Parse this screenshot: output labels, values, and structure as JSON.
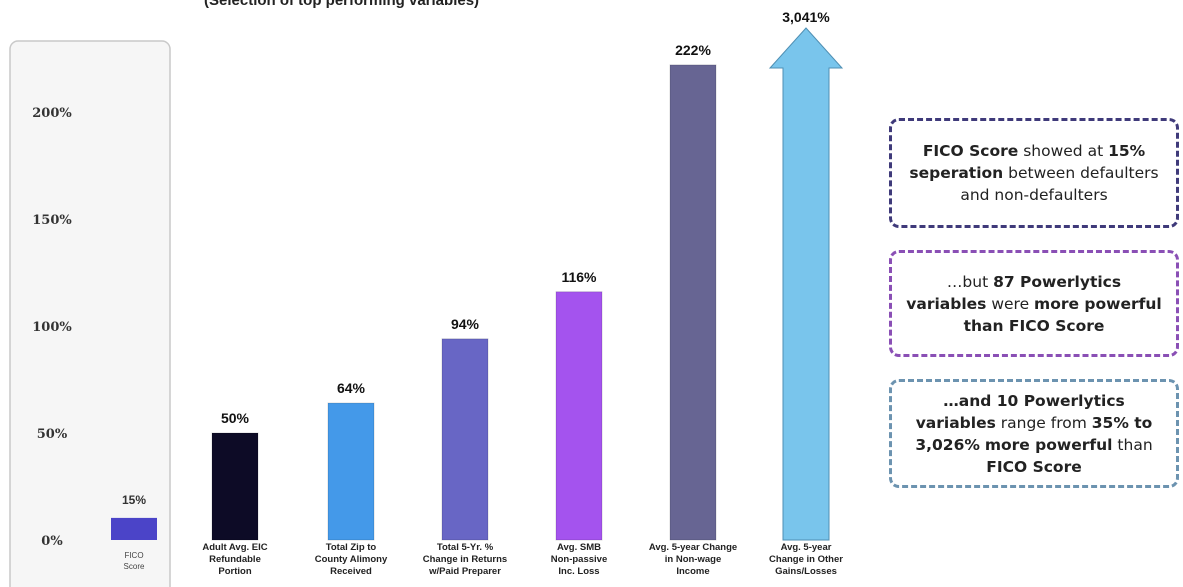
{
  "subtitle": "(Selection of top performing variables)",
  "chart_data": {
    "type": "bar",
    "y_ticks": [
      "0%",
      "50%",
      "100%",
      "150%",
      "200%"
    ],
    "y_tick_values": [
      0,
      50,
      100,
      150,
      200
    ],
    "ylim": [
      0,
      220
    ],
    "baseline_category": {
      "label": "FICO Score",
      "value": 15,
      "value_label": "15%",
      "color": "#4b44c8"
    },
    "categories": [
      "Adult Avg. EIC Refundable Portion",
      "Total Zip to County Alimony Received",
      "Total 5-Yr. % Change in Returns w/Paid Preparer",
      "Avg. SMB Non-passive Inc. Loss",
      "Avg. 5-year Change in Non-wage Income",
      "Avg. 5-year Change in Other Gains/Losses"
    ],
    "category_lines": [
      [
        "Adult Avg. EIC",
        "Refundable",
        "Portion"
      ],
      [
        "Total Zip to",
        "County Alimony",
        "Received"
      ],
      [
        "Total 5-Yr. %",
        "Change in Returns",
        "w/Paid Preparer"
      ],
      [
        "Avg. SMB",
        "Non-passive",
        "Inc. Loss"
      ],
      [
        "Avg. 5-year Change",
        "in Non-wage",
        "Income"
      ],
      [
        "Avg. 5-year",
        "Change in Other",
        "Gains/Losses"
      ]
    ],
    "values": [
      50,
      64,
      94,
      116,
      222,
      3041
    ],
    "value_labels": [
      "50%",
      "64%",
      "94%",
      "116%",
      "222%",
      "3,041%"
    ],
    "colors": [
      "#0d0b26",
      "#4499e9",
      "#6866c5",
      "#a453ee",
      "#676593",
      "#79c5ec"
    ],
    "last_bar_style": "arrow"
  },
  "callouts": [
    {
      "parts": [
        {
          "t": "FICO Score",
          "b": true
        },
        {
          "t": " showed at ",
          "b": false
        },
        {
          "t": "15%",
          "b": true
        },
        {
          "t": " ",
          "b": false
        },
        {
          "t": "seperation",
          "b": true
        },
        {
          "t": " between defaulters and non-defaulters",
          "b": false
        }
      ]
    },
    {
      "parts": [
        {
          "t": "…but ",
          "b": false
        },
        {
          "t": "87 Powerlytics variables",
          "b": true
        },
        {
          "t": " were ",
          "b": false
        },
        {
          "t": "more powerful than FICO Score",
          "b": true
        }
      ]
    },
    {
      "parts": [
        {
          "t": "…and 10 Powerlytics variables",
          "b": true
        },
        {
          "t": " range from ",
          "b": false
        },
        {
          "t": "35% to 3,026%",
          "b": true
        },
        {
          "t": " ",
          "b": false
        },
        {
          "t": "more powerful",
          "b": true
        },
        {
          "t": " than ",
          "b": false
        },
        {
          "t": "FICO Score",
          "b": true
        }
      ]
    }
  ]
}
